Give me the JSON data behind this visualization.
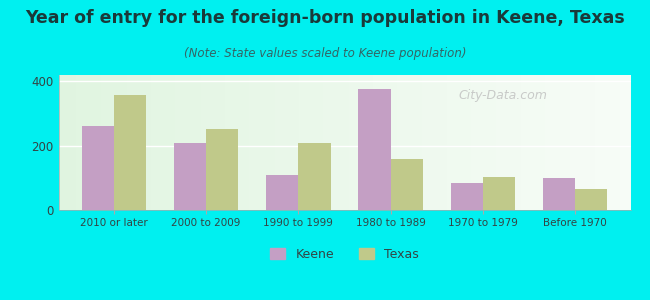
{
  "title": "Year of entry for the foreign-born population in Keene, Texas",
  "subtitle": "(Note: State values scaled to Keene population)",
  "categories": [
    "2010 or later",
    "2000 to 2009",
    "1990 to 1999",
    "1980 to 1989",
    "1970 to 1979",
    "Before 1970"
  ],
  "keene_values": [
    260,
    210,
    110,
    375,
    85,
    100
  ],
  "texas_values": [
    358,
    252,
    207,
    160,
    103,
    65
  ],
  "keene_color": "#c49fc4",
  "texas_color": "#c0c98a",
  "background_color": "#00f0f0",
  "title_color": "#1a3a3a",
  "subtitle_color": "#336666",
  "tick_label_color": "#334444",
  "ylim": [
    0,
    420
  ],
  "yticks": [
    0,
    200,
    400
  ],
  "bar_width": 0.35,
  "title_fontsize": 12.5,
  "subtitle_fontsize": 8.5,
  "watermark_text": "City-Data.com",
  "legend_labels": [
    "Keene",
    "Texas"
  ]
}
